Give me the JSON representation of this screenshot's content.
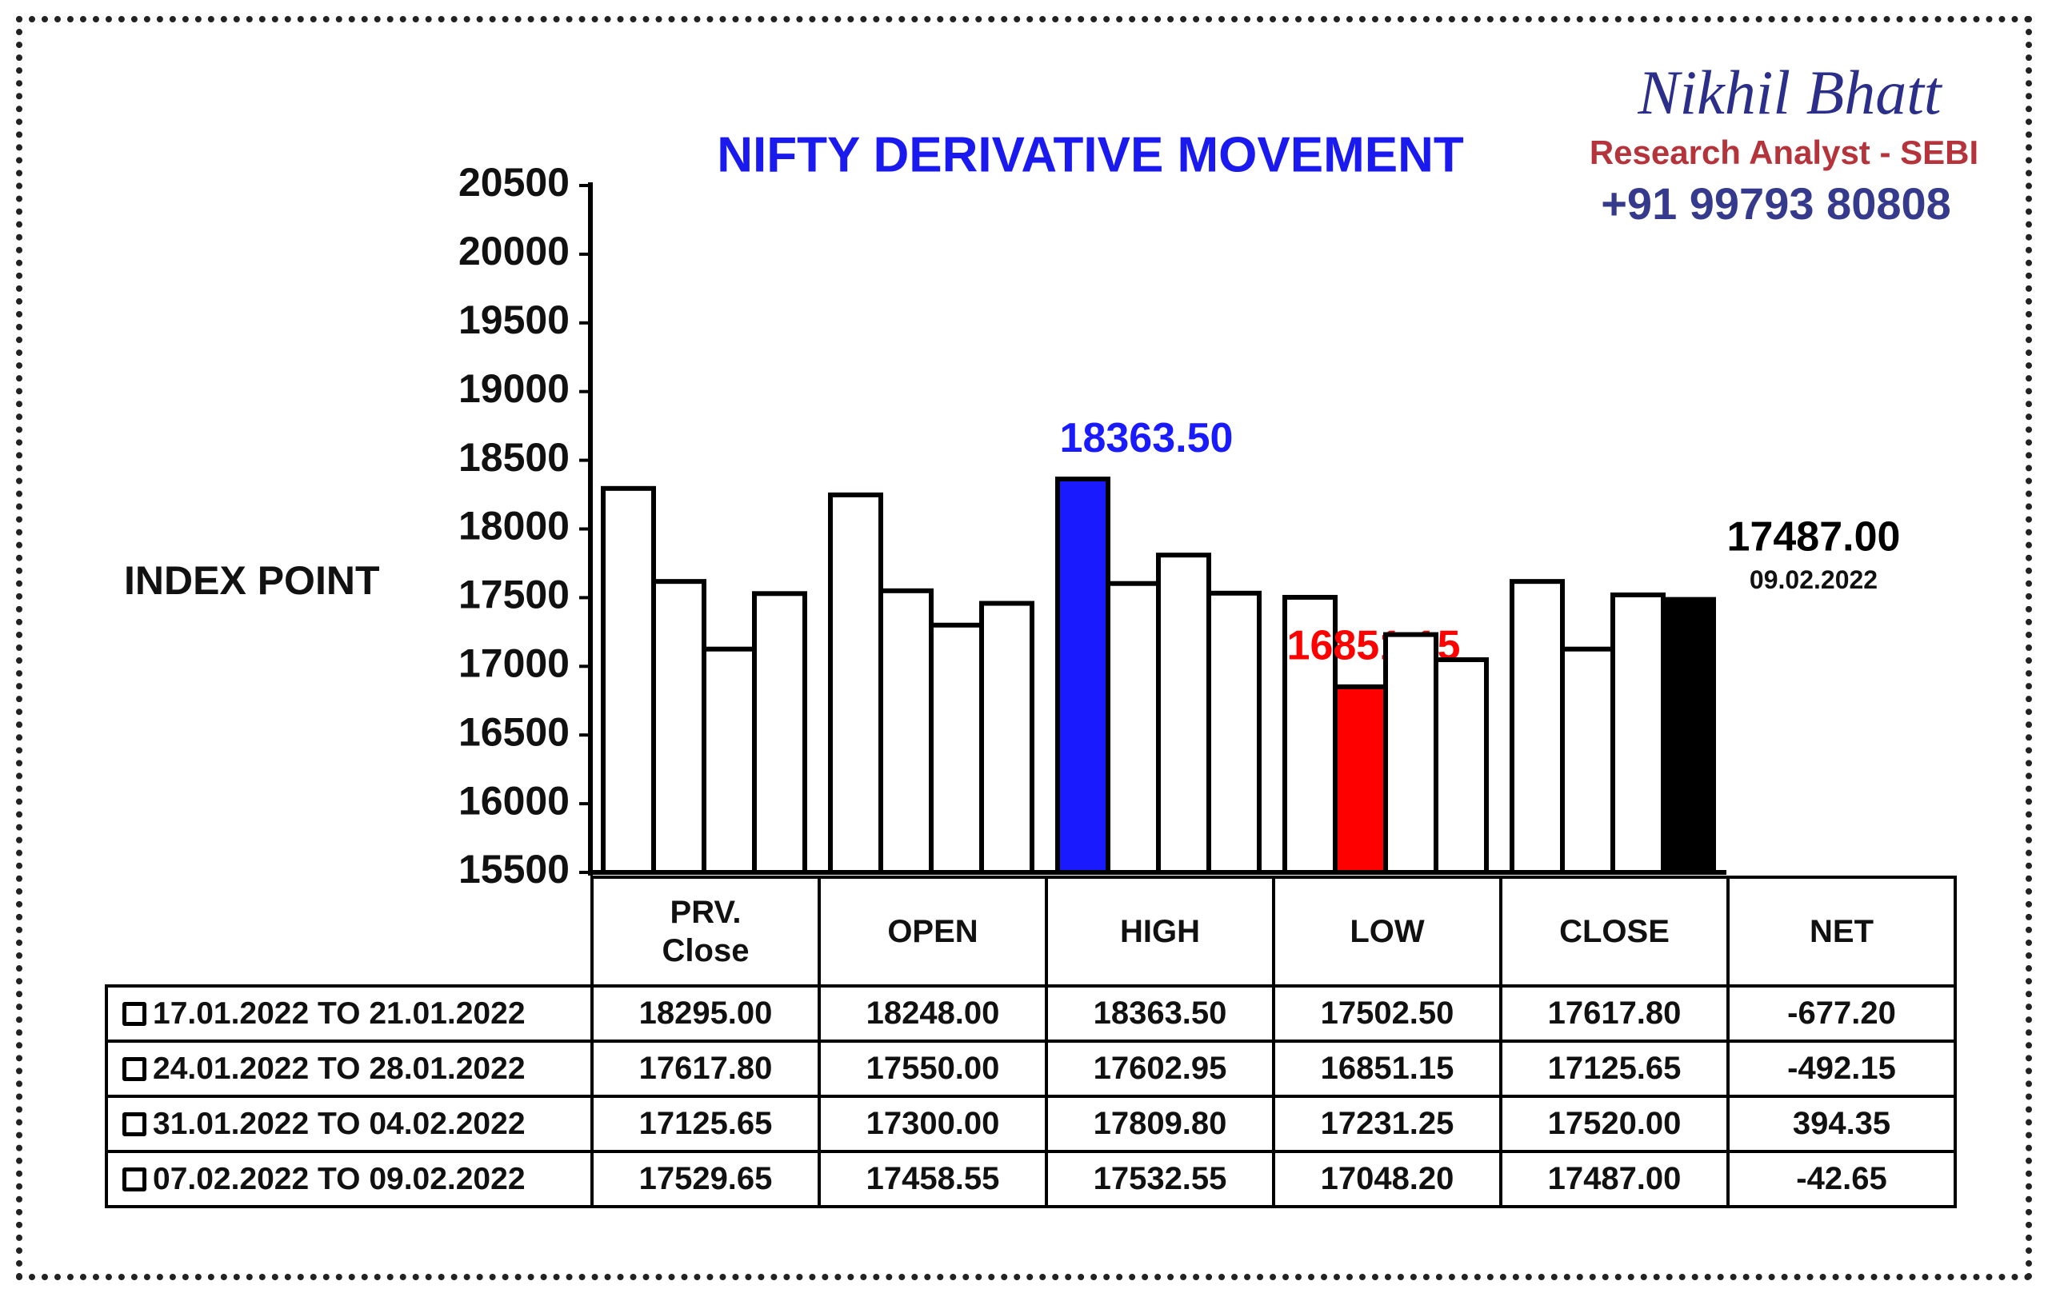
{
  "branding": {
    "name": "Nikhil Bhatt",
    "role": "Research Analyst - SEBI",
    "phone": "+91 99793 80808"
  },
  "chart_data": {
    "type": "bar",
    "title": "NIFTY DERIVATIVE MOVEMENT",
    "ylabel": "INDEX POINT",
    "categories": [
      "PRV.\nClose",
      "OPEN",
      "HIGH",
      "LOW",
      "CLOSE",
      "NET"
    ],
    "ylim": [
      15500,
      20500
    ],
    "yticks": [
      15500,
      16000,
      16500,
      17000,
      17500,
      18000,
      18500,
      19000,
      19500,
      20000,
      20500
    ],
    "series": [
      {
        "name": "17.01.2022 TO 21.01.2022",
        "color": "#ffffff",
        "colors": [
          "#ffffff",
          "#ffffff",
          "#1a1aff",
          "#ffffff",
          "#ffffff",
          null
        ],
        "values": [
          18295.0,
          18248.0,
          18363.5,
          17502.5,
          17617.8,
          -677.2
        ],
        "value_labels": [
          "18295.00",
          "18248.00",
          "18363.50",
          "17502.50",
          "17617.80",
          "-677.20"
        ]
      },
      {
        "name": "24.01.2022 TO 28.01.2022",
        "color": "#ffffff",
        "colors": [
          "#ffffff",
          "#ffffff",
          "#ffffff",
          "#ff0000",
          "#ffffff",
          null
        ],
        "values": [
          17617.8,
          17550.0,
          17602.95,
          16851.15,
          17125.65,
          -492.15
        ],
        "value_labels": [
          "17617.80",
          "17550.00",
          "17602.95",
          "16851.15",
          "17125.65",
          "-492.15"
        ]
      },
      {
        "name": "31.01.2022 TO 04.02.2022",
        "color": "#ffffff",
        "colors": [
          "#ffffff",
          "#ffffff",
          "#ffffff",
          "#ffffff",
          "#ffffff",
          null
        ],
        "values": [
          17125.65,
          17300.0,
          17809.8,
          17231.25,
          17520.0,
          394.35
        ],
        "value_labels": [
          "17125.65",
          "17300.00",
          "17809.80",
          "17231.25",
          "17520.00",
          "394.35"
        ]
      },
      {
        "name": "07.02.2022 TO 09.02.2022",
        "color": "#ffffff",
        "colors": [
          "#ffffff",
          "#ffffff",
          "#ffffff",
          "#ffffff",
          "#000000",
          null
        ],
        "values": [
          17529.65,
          17458.55,
          17532.55,
          17048.2,
          17487.0,
          -42.65
        ],
        "value_labels": [
          "17529.65",
          "17458.55",
          "17532.55",
          "17048.20",
          "17487.00",
          "-42.65"
        ],
        "annotation": "09.02.2022"
      }
    ]
  }
}
